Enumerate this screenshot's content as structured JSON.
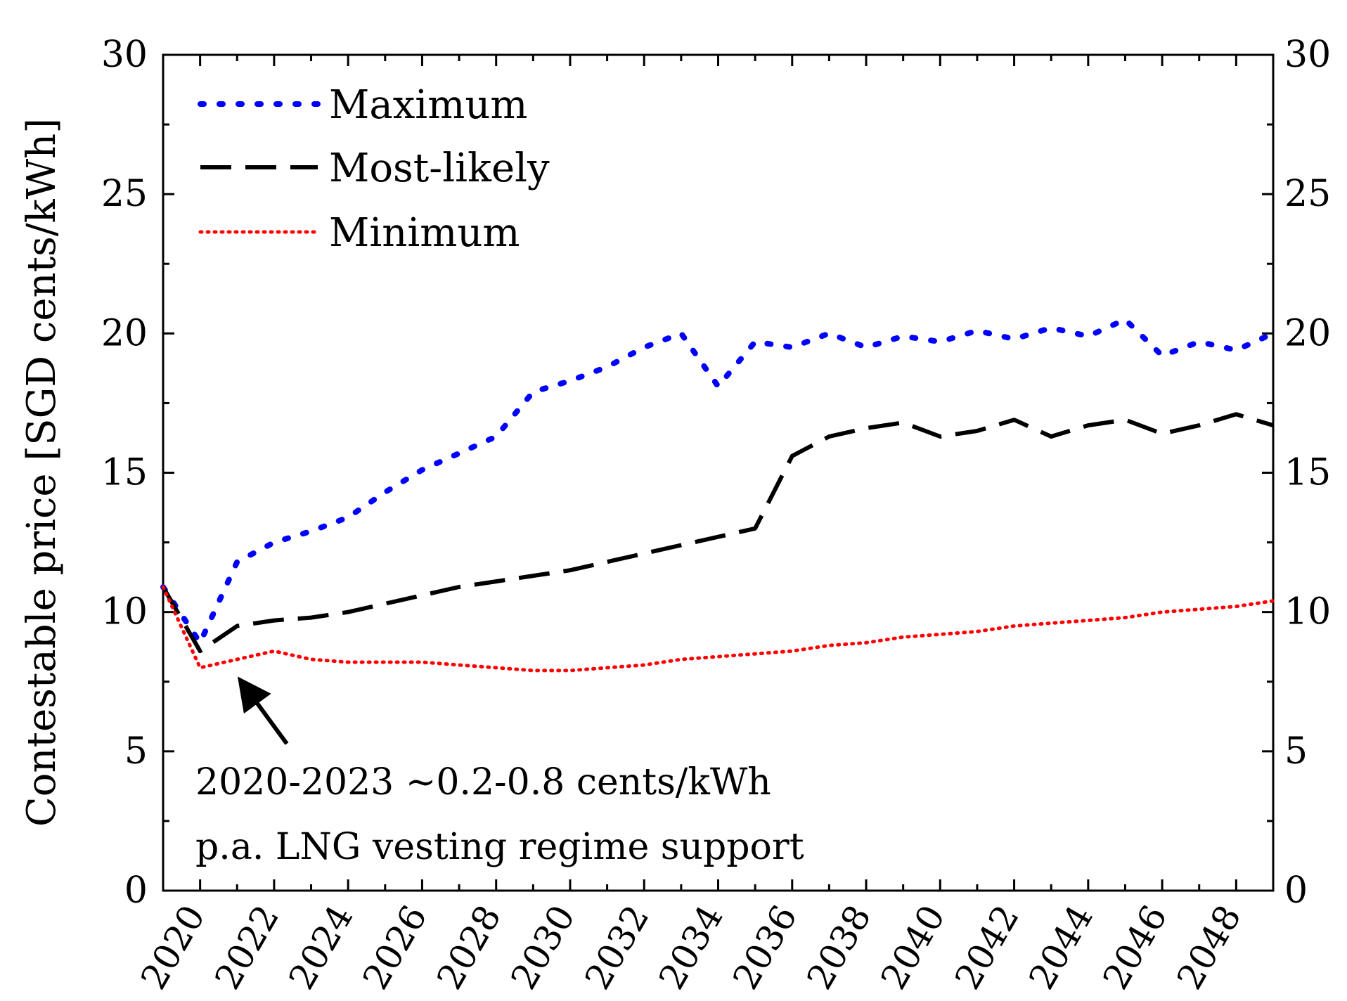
{
  "chart_data": {
    "type": "line",
    "title": "",
    "xlabel": "",
    "ylabel": "Contestable price [SGD cents/kWh]",
    "xlim": [
      2019,
      2049
    ],
    "ylim": [
      0,
      30
    ],
    "y_ticks": [
      0,
      5,
      10,
      15,
      20,
      25,
      30
    ],
    "x_ticks": [
      2020,
      2022,
      2024,
      2026,
      2028,
      2030,
      2032,
      2034,
      2036,
      2038,
      2040,
      2042,
      2044,
      2046,
      2048
    ],
    "secondary_y_axis": true,
    "grid": false,
    "legend_position": "top-left",
    "x": [
      2019,
      2020,
      2021,
      2022,
      2023,
      2024,
      2025,
      2026,
      2027,
      2028,
      2029,
      2030,
      2031,
      2032,
      2033,
      2034,
      2035,
      2036,
      2037,
      2038,
      2039,
      2040,
      2041,
      2042,
      2043,
      2044,
      2045,
      2046,
      2047,
      2048,
      2049
    ],
    "series": [
      {
        "name": "Maximum",
        "color": "#0000ff",
        "style": "dotted-wide",
        "values": [
          10.9,
          8.9,
          11.8,
          12.5,
          12.9,
          13.4,
          14.3,
          15.1,
          15.7,
          16.3,
          17.9,
          18.3,
          18.8,
          19.5,
          20.0,
          18.1,
          19.7,
          19.5,
          20.0,
          19.5,
          19.9,
          19.7,
          20.1,
          19.8,
          20.2,
          19.9,
          20.5,
          19.2,
          19.7,
          19.4,
          20.0
        ]
      },
      {
        "name": "Most-likely",
        "color": "#000000",
        "style": "dashed",
        "values": [
          10.9,
          8.6,
          9.5,
          9.7,
          9.8,
          10.0,
          10.3,
          10.6,
          10.9,
          11.1,
          11.3,
          11.5,
          11.8,
          12.1,
          12.4,
          12.7,
          13.0,
          15.6,
          16.3,
          16.6,
          16.8,
          16.3,
          16.5,
          16.9,
          16.3,
          16.7,
          16.9,
          16.4,
          16.7,
          17.1,
          16.7
        ]
      },
      {
        "name": "Minimum",
        "color": "#ff0000",
        "style": "dotted-dense",
        "values": [
          10.9,
          8.0,
          8.3,
          8.6,
          8.3,
          8.2,
          8.2,
          8.2,
          8.1,
          8.0,
          7.9,
          7.9,
          8.0,
          8.1,
          8.3,
          8.4,
          8.5,
          8.6,
          8.8,
          8.9,
          9.1,
          9.2,
          9.3,
          9.5,
          9.6,
          9.7,
          9.8,
          10.0,
          10.1,
          10.2,
          10.4
        ]
      }
    ],
    "annotations": [
      {
        "lines": [
          "2020-2023 ~0.2-0.8 cents/kWh",
          "p.a. LNG vesting regime support"
        ],
        "points_to": {
          "x": 2020.9,
          "y": 7.3
        }
      }
    ]
  }
}
